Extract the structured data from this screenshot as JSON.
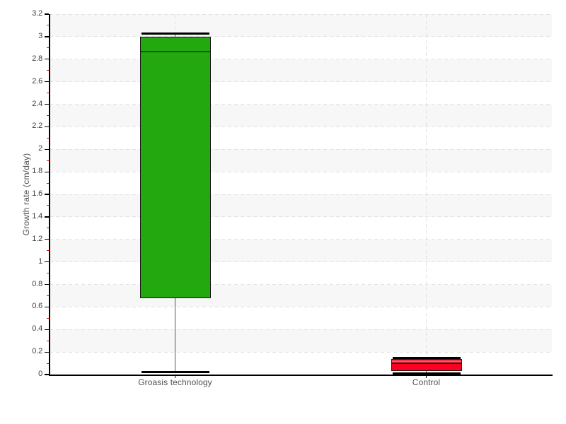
{
  "chart_data": {
    "type": "box",
    "title": "",
    "ylabel": "Growth rate (cm/day)",
    "xlabel": "",
    "ylim": [
      0,
      3.2
    ],
    "y_major_step": 0.2,
    "y_minor_step": 0.1,
    "y_tick_labels": [
      "0",
      "0.2",
      "0.4",
      "0.6",
      "0.8",
      "1",
      "1.2",
      "1.4",
      "1.6",
      "1.8",
      "2",
      "2.2",
      "2.4",
      "2.6",
      "2.8",
      "3",
      "3.2"
    ],
    "categories": [
      "Groasis technology",
      "Control"
    ],
    "series": [
      {
        "name": "Groasis technology",
        "min": 0.02,
        "q1": 0.68,
        "median": 2.87,
        "q3": 3.0,
        "max": 3.03,
        "fill": "#23a80f",
        "median_color": "#0e5c0e",
        "highlight": null
      },
      {
        "name": "Control",
        "min": 0.01,
        "q1": 0.03,
        "median": 0.1,
        "q3": 0.14,
        "max": 0.15,
        "fill": "#fb0021",
        "median_color": "#4a000a",
        "highlight": "#ff5462"
      }
    ],
    "legend": null,
    "grid": {
      "horizontal_dashed": true,
      "vertical_dashed_at_categories": true,
      "band_colors": [
        "#ffffff",
        "#f7f7f7"
      ],
      "gridline_color": "#e2e2e2"
    },
    "axes_style": {
      "axis_color": "#000000",
      "major_tick_color": "#000000",
      "minor_tick_color": "#ff0000",
      "tick_label_color": "#3f3f3f",
      "category_label_color": "#4f4f4f",
      "box_border_color": "#1a1a1a",
      "whisker_color": "#555555",
      "cap_color": "#000000"
    }
  }
}
